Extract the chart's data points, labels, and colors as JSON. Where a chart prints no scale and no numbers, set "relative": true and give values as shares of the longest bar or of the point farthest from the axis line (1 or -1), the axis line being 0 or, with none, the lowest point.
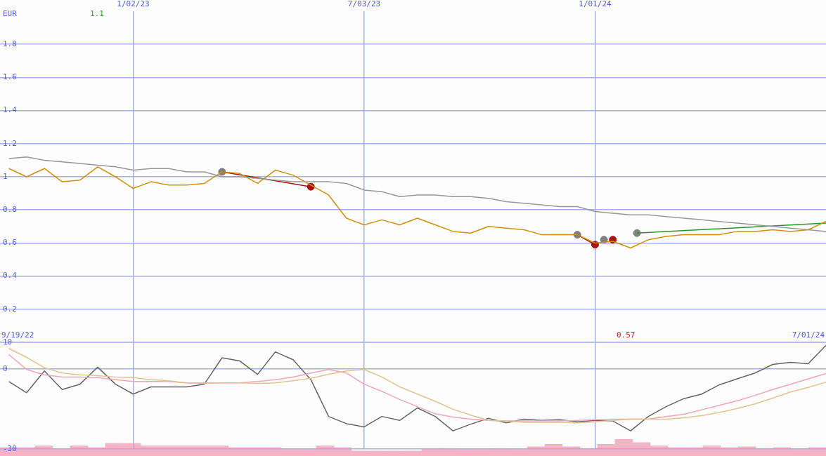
{
  "chart_data": [
    {
      "type": "line",
      "ylabel": "EUR",
      "annotations": [
        "1.1"
      ],
      "grid": true,
      "legend": false,
      "marker": "none",
      "x": [
        "2022-09-26",
        "2022-10-10",
        "2022-10-24",
        "2022-11-07",
        "2022-11-21",
        "2022-12-05",
        "2022-12-19",
        "2023-01-02",
        "2023-01-16",
        "2023-01-30",
        "2023-02-13",
        "2023-02-27",
        "2023-03-13",
        "2023-03-27",
        "2023-04-10",
        "2023-04-24",
        "2023-05-08",
        "2023-05-22",
        "2023-06-05",
        "2023-06-19",
        "2023-07-03",
        "2023-07-17",
        "2023-07-31",
        "2023-08-14",
        "2023-08-28",
        "2023-09-11",
        "2023-09-25",
        "2023-10-09",
        "2023-10-23",
        "2023-11-06",
        "2023-11-20",
        "2023-12-04",
        "2023-12-18",
        "2024-01-01",
        "2024-01-15",
        "2024-01-29",
        "2024-02-12",
        "2024-02-26",
        "2024-03-11",
        "2024-03-25",
        "2024-04-08",
        "2024-04-22",
        "2024-05-06",
        "2024-05-20",
        "2024-06-03",
        "2024-06-17",
        "2024-07-01"
      ],
      "xlim": [
        "2022-09-19",
        "2024-07-01"
      ],
      "xticks": [
        {
          "value": "2023-01-02",
          "label": "1/02/23"
        },
        {
          "value": "2023-07-03",
          "label": "7/03/23"
        },
        {
          "value": "2024-01-01",
          "label": "1/01/24"
        }
      ],
      "ylim": [
        0,
        2
      ],
      "yticks": [
        0.2,
        0.4,
        0.6,
        0.8,
        1,
        1.2,
        1.4,
        1.6,
        1.8
      ],
      "series": [
        {
          "color": "#999999",
          "values": [
            1.11,
            1.12,
            1.1,
            1.09,
            1.08,
            1.07,
            1.06,
            1.04,
            1.05,
            1.05,
            1.03,
            1.03,
            1.0,
            1.0,
            0.99,
            0.98,
            0.97,
            0.97,
            0.97,
            0.96,
            0.92,
            0.91,
            0.88,
            0.89,
            0.89,
            0.88,
            0.88,
            0.87,
            0.85,
            0.84,
            0.83,
            0.82,
            0.82,
            0.79,
            0.78,
            0.77,
            0.77,
            0.76,
            0.75,
            0.74,
            0.73,
            0.72,
            0.71,
            0.7,
            0.69,
            0.68,
            0.67
          ]
        },
        {
          "color": "#d4900a",
          "values": [
            1.05,
            1.0,
            1.05,
            0.97,
            0.98,
            1.06,
            1.0,
            0.93,
            0.97,
            0.95,
            0.95,
            0.96,
            1.03,
            1.02,
            0.96,
            1.04,
            1.01,
            0.95,
            0.89,
            0.75,
            0.71,
            0.74,
            0.71,
            0.75,
            0.71,
            0.67,
            0.66,
            0.7,
            0.69,
            0.68,
            0.65,
            0.65,
            0.65,
            0.6,
            0.61,
            0.57,
            0.62,
            0.64,
            0.65,
            0.65,
            0.65,
            0.67,
            0.67,
            0.68,
            0.67,
            0.68,
            0.73
          ]
        },
        {
          "color": "#aa1111",
          "x": [
            "2023-03-13",
            "2023-05-22"
          ],
          "values": [
            1.03,
            0.94
          ]
        },
        {
          "color": "#aa1111",
          "x": [
            "2023-12-18",
            "2024-01-01"
          ],
          "values": [
            0.65,
            0.59
          ]
        },
        {
          "color": "#229922",
          "x": [
            "2024-02-03",
            "2024-07-01"
          ],
          "values": [
            0.66,
            0.72
          ]
        },
        {
          "type": "scatter",
          "marker": "circle",
          "color": "#808080",
          "x": [
            "2023-03-13",
            "2023-12-18",
            "2024-01-08",
            "2024-02-03"
          ],
          "values": [
            1.03,
            0.65,
            0.62,
            0.66
          ]
        },
        {
          "type": "scatter",
          "marker": "circle",
          "color": "#aa1111",
          "x": [
            "2023-05-22",
            "2024-01-01",
            "2024-01-15"
          ],
          "values": [
            0.94,
            0.59,
            0.62
          ]
        }
      ]
    },
    {
      "type": "line",
      "annotations": [
        "9/19/22",
        "0.57",
        "7/01/24"
      ],
      "grid": true,
      "legend": false,
      "marker": "none",
      "tick_labels": "y",
      "x": [
        "2022-09-26",
        "2022-10-10",
        "2022-10-24",
        "2022-11-07",
        "2022-11-21",
        "2022-12-05",
        "2022-12-19",
        "2023-01-02",
        "2023-01-16",
        "2023-01-30",
        "2023-02-13",
        "2023-02-27",
        "2023-03-13",
        "2023-03-27",
        "2023-04-10",
        "2023-04-24",
        "2023-05-08",
        "2023-05-22",
        "2023-06-05",
        "2023-06-19",
        "2023-07-03",
        "2023-07-17",
        "2023-07-31",
        "2023-08-14",
        "2023-08-28",
        "2023-09-11",
        "2023-09-25",
        "2023-10-09",
        "2023-10-23",
        "2023-11-06",
        "2023-11-20",
        "2023-12-04",
        "2023-12-18",
        "2024-01-01",
        "2024-01-15",
        "2024-01-29",
        "2024-02-12",
        "2024-02-26",
        "2024-03-11",
        "2024-03-25",
        "2024-04-08",
        "2024-04-22",
        "2024-05-06",
        "2024-05-20",
        "2024-06-03",
        "2024-06-17",
        "2024-07-01"
      ],
      "xlim": [
        "2022-09-19",
        "2024-07-01"
      ],
      "xticks": [
        {
          "value": "2023-01-02",
          "label": null
        },
        {
          "value": "2023-07-03",
          "label": null
        },
        {
          "value": "2024-01-01",
          "label": null
        }
      ],
      "ylim": [
        -30,
        10
      ],
      "yticks": [
        -30,
        0,
        10
      ],
      "series": [
        {
          "color": "#e3c48e",
          "values": [
            7.7,
            4.4,
            0.5,
            -1.5,
            -2.2,
            -2.5,
            -3,
            -3.2,
            -4,
            -4.4,
            -5.2,
            -5.2,
            -5.2,
            -5.2,
            -5.4,
            -5.2,
            -4.4,
            -3.5,
            -2,
            -0.7,
            -0.2,
            -3,
            -6.7,
            -9.4,
            -12.1,
            -15.1,
            -17.3,
            -19.3,
            -19.5,
            -20,
            -20,
            -20,
            -20.2,
            -19.8,
            -19.3,
            -18.8,
            -18.8,
            -18.8,
            -18.3,
            -17.5,
            -16.3,
            -14.8,
            -13.1,
            -10.9,
            -8.6,
            -6.9,
            -4.9
          ]
        },
        {
          "color": "#f5a3b8",
          "values": [
            5.4,
            -0.2,
            -2.2,
            -3,
            -3,
            -3.2,
            -4,
            -4.7,
            -4.7,
            -4.7,
            -5.2,
            -5.4,
            -5.2,
            -5.2,
            -4.7,
            -4,
            -3,
            -1.5,
            -0.2,
            -1.5,
            -5.7,
            -8.4,
            -11.4,
            -14.1,
            -16.8,
            -18,
            -18.8,
            -19.3,
            -19.5,
            -19.5,
            -19.5,
            -19.5,
            -19.3,
            -19,
            -18.8,
            -18.8,
            -18.8,
            -17.8,
            -17,
            -15.3,
            -13.6,
            -11.9,
            -9.9,
            -7.7,
            -5.7,
            -3.7,
            -1.7
          ]
        },
        {
          "color": "#666666",
          "values": [
            -4.7,
            -8.9,
            -0.7,
            -7.7,
            -5.7,
            0.7,
            -5.7,
            -9.4,
            -6.7,
            -6.7,
            -6.7,
            -5.7,
            4.2,
            3,
            -2,
            6.4,
            3.5,
            -4,
            -17.8,
            -20.5,
            -21.7,
            -17.8,
            -19.3,
            -14.6,
            -17.8,
            -23.2,
            -20.7,
            -18.5,
            -20.2,
            -18.8,
            -19.3,
            -19,
            -19.8,
            -19.3,
            -19.5,
            -23.2,
            -17.8,
            -14.1,
            -11.1,
            -9.4,
            -5.9,
            -3.7,
            -1.5,
            1.7,
            2.5,
            2,
            8.9
          ]
        }
      ]
    },
    {
      "type": "bar",
      "relative": true,
      "legend": false,
      "categories": [
        null,
        null,
        null,
        null,
        null,
        null,
        null,
        null,
        null,
        null,
        null,
        null,
        null,
        null,
        null,
        null,
        null,
        null,
        null,
        null,
        null,
        null,
        null,
        null,
        null,
        null,
        null,
        null,
        null,
        null,
        null,
        null,
        null,
        null,
        null,
        null,
        null,
        null,
        null,
        null,
        null,
        null,
        null,
        null,
        null,
        null,
        null
      ],
      "series": [
        {
          "color": "#f7b3c6",
          "values": [
            0.5,
            0.5,
            0.6,
            0.45,
            0.6,
            0.5,
            0.75,
            0.75,
            0.6,
            0.6,
            0.6,
            0.6,
            0.6,
            0.5,
            0.5,
            0.5,
            0.4,
            0.4,
            0.6,
            0.5,
            0.3,
            0.3,
            0.3,
            0.3,
            0.45,
            0.45,
            0.4,
            0.4,
            0.45,
            0.4,
            0.55,
            0.7,
            0.55,
            0.45,
            0.7,
            1,
            0.8,
            0.6,
            0.5,
            0.5,
            0.6,
            0.5,
            0.55,
            0.45,
            0.5,
            0.4,
            0.5
          ]
        }
      ]
    }
  ]
}
